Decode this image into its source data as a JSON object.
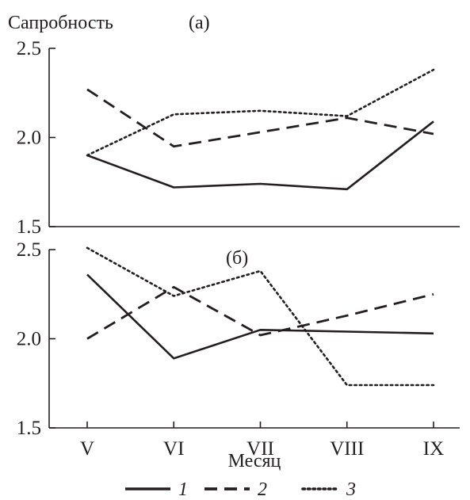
{
  "chart_data": {
    "type": "line",
    "y_label": "Сапробность",
    "x_label": "Месяц",
    "categories": [
      "V",
      "VI",
      "VII",
      "VIII",
      "IX"
    ],
    "legend": {
      "placement": "bottom",
      "entries": [
        "1",
        "2",
        "3"
      ]
    },
    "panels": [
      {
        "label": "(а)",
        "ylim": [
          1.5,
          2.5
        ],
        "yticks": [
          "1.5",
          "2.0",
          "2.5"
        ],
        "series": [
          {
            "name": "1",
            "style": "solid",
            "values": [
              1.9,
              1.72,
              1.74,
              1.71,
              2.09
            ]
          },
          {
            "name": "2",
            "style": "dashed",
            "values": [
              2.27,
              1.95,
              2.03,
              2.11,
              2.02
            ]
          },
          {
            "name": "3",
            "style": "dotted",
            "values": [
              1.9,
              2.13,
              2.15,
              2.12,
              2.38
            ]
          }
        ]
      },
      {
        "label": "(б)",
        "ylim": [
          1.5,
          2.5
        ],
        "yticks": [
          "1.5",
          "2.0",
          "2.5"
        ],
        "series": [
          {
            "name": "1",
            "style": "solid",
            "values": [
              2.36,
              1.89,
              2.05,
              2.04,
              2.03
            ]
          },
          {
            "name": "2",
            "style": "dashed",
            "values": [
              2.0,
              2.29,
              2.02,
              2.13,
              2.25
            ]
          },
          {
            "name": "3",
            "style": "dotted",
            "values": [
              2.51,
              2.24,
              2.38,
              1.74,
              1.74
            ]
          }
        ]
      }
    ]
  }
}
